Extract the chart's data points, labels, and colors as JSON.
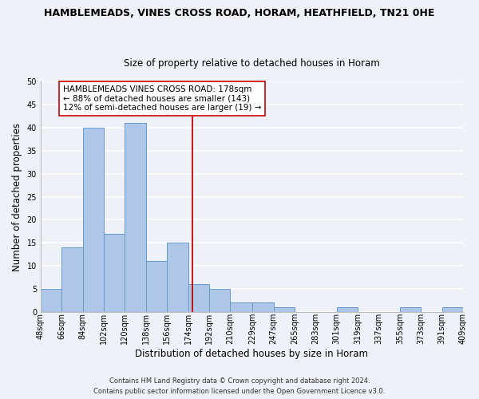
{
  "title": "HAMBLEMEADS, VINES CROSS ROAD, HORAM, HEATHFIELD, TN21 0HE",
  "subtitle": "Size of property relative to detached houses in Horam",
  "xlabel": "Distribution of detached houses by size in Horam",
  "ylabel": "Number of detached properties",
  "bin_edges": [
    48,
    66,
    84,
    102,
    120,
    138,
    156,
    174,
    192,
    210,
    229,
    247,
    265,
    283,
    301,
    319,
    337,
    355,
    373,
    391,
    409
  ],
  "bin_labels": [
    "48sqm",
    "66sqm",
    "84sqm",
    "102sqm",
    "120sqm",
    "138sqm",
    "156sqm",
    "174sqm",
    "192sqm",
    "210sqm",
    "229sqm",
    "247sqm",
    "265sqm",
    "283sqm",
    "301sqm",
    "319sqm",
    "337sqm",
    "355sqm",
    "373sqm",
    "391sqm",
    "409sqm"
  ],
  "counts": [
    5,
    14,
    40,
    17,
    41,
    11,
    15,
    6,
    5,
    2,
    2,
    1,
    0,
    0,
    1,
    0,
    0,
    1,
    0,
    1
  ],
  "bar_color": "#aec6e8",
  "bar_edge_color": "#6699cc",
  "vline_x": 178,
  "vline_color": "#cc0000",
  "ylim": [
    0,
    50
  ],
  "yticks": [
    0,
    5,
    10,
    15,
    20,
    25,
    30,
    35,
    40,
    45,
    50
  ],
  "annotation_line1": "HAMBLEMEADS VINES CROSS ROAD: 178sqm",
  "annotation_line2": "← 88% of detached houses are smaller (143)",
  "annotation_line3": "12% of semi-detached houses are larger (19) →",
  "annotation_box_color": "#ffffff",
  "annotation_box_edge": "#cc0000",
  "footer_line1": "Contains HM Land Registry data © Crown copyright and database right 2024.",
  "footer_line2": "Contains public sector information licensed under the Open Government Licence v3.0.",
  "background_color": "#eef2f8",
  "grid_color": "#ffffff",
  "title_fontsize": 9,
  "subtitle_fontsize": 8.5,
  "axis_label_fontsize": 8.5,
  "tick_fontsize": 7,
  "annotation_fontsize": 7.5,
  "footer_fontsize": 6
}
